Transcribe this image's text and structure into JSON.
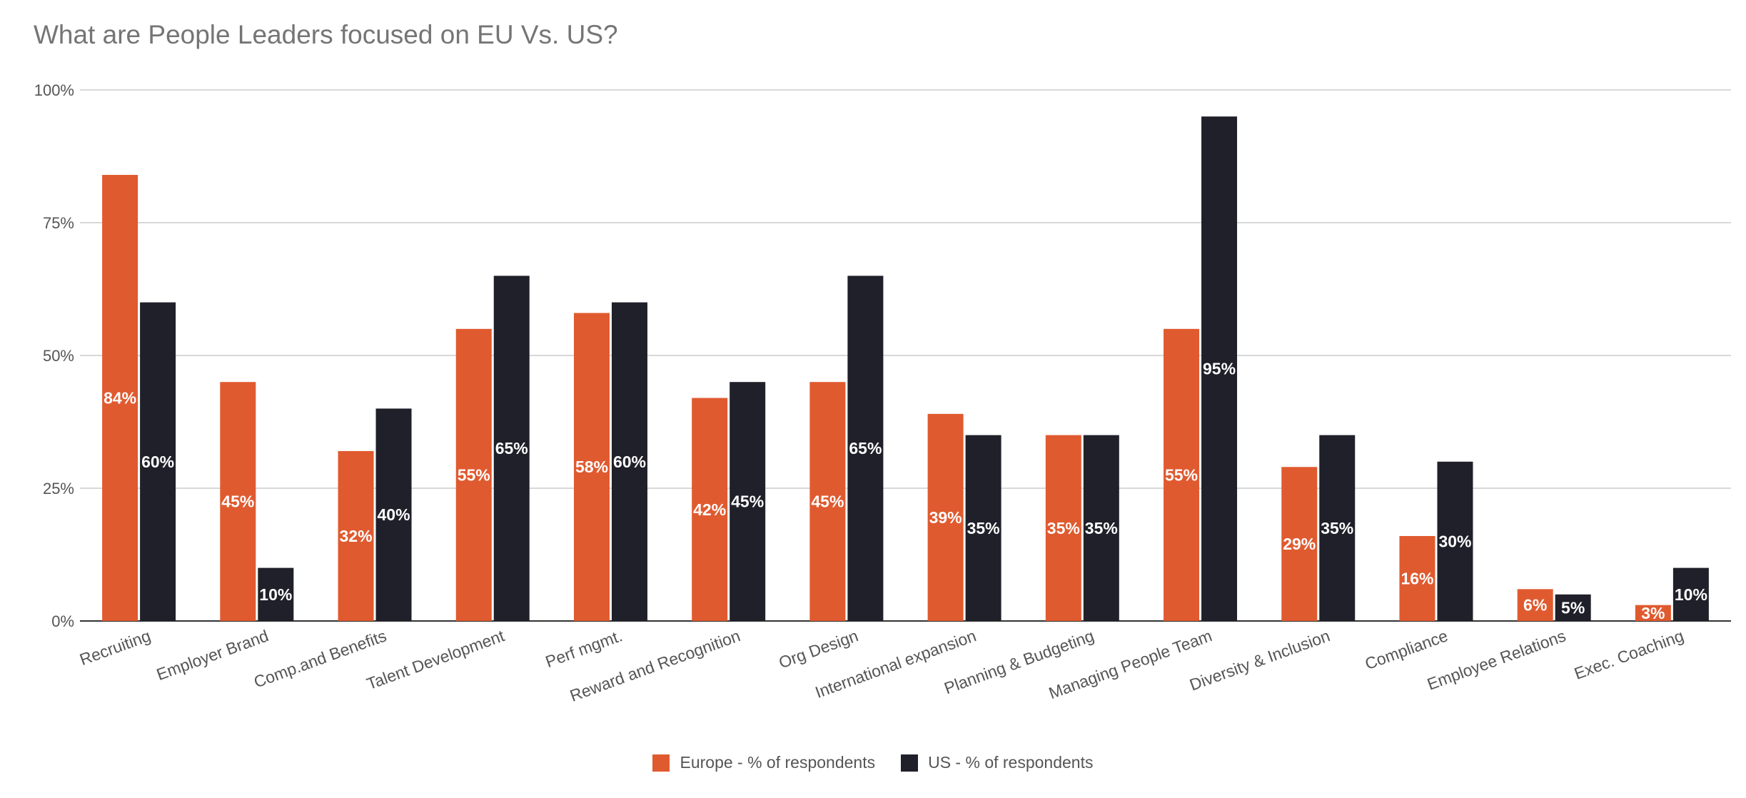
{
  "chart_data": {
    "type": "bar",
    "title": "What are People Leaders focused on EU Vs. US?",
    "xlabel": "",
    "ylabel": "",
    "ylim": [
      0,
      100
    ],
    "yticks": [
      "0%",
      "25%",
      "50%",
      "75%",
      "100%"
    ],
    "grid": true,
    "legend_position": "bottom",
    "categories": [
      "Recruiting",
      "Employer Brand",
      "Comp.and Benefits",
      "Talent Development",
      "Perf mgmt.",
      "Reward and Recognition",
      "Org Design",
      "International expansion",
      "Planning & Budgeting",
      "Managing People Team",
      "Diversity & Inclusion",
      "Compliance",
      "Employee Relations",
      "Exec. Coaching"
    ],
    "series": [
      {
        "name": "Europe - % of respondents",
        "color": "#e05a2f",
        "values": [
          84,
          45,
          32,
          55,
          58,
          42,
          45,
          39,
          35,
          55,
          29,
          16,
          6,
          3
        ],
        "labels": [
          "84%",
          "45%",
          "32%",
          "55%",
          "58%",
          "42%",
          "45%",
          "39%",
          "35%",
          "55%",
          "29%",
          "16%",
          "6%",
          "3%"
        ]
      },
      {
        "name": "US - % of respondents",
        "color": "#20202a",
        "values": [
          60,
          10,
          40,
          65,
          60,
          45,
          65,
          35,
          35,
          95,
          35,
          30,
          5,
          10
        ],
        "labels": [
          "60%",
          "10%",
          "40%",
          "65%",
          "60%",
          "45%",
          "65%",
          "35%",
          "35%",
          "95%",
          "35%",
          "30%",
          "5%",
          "10%"
        ]
      }
    ]
  }
}
